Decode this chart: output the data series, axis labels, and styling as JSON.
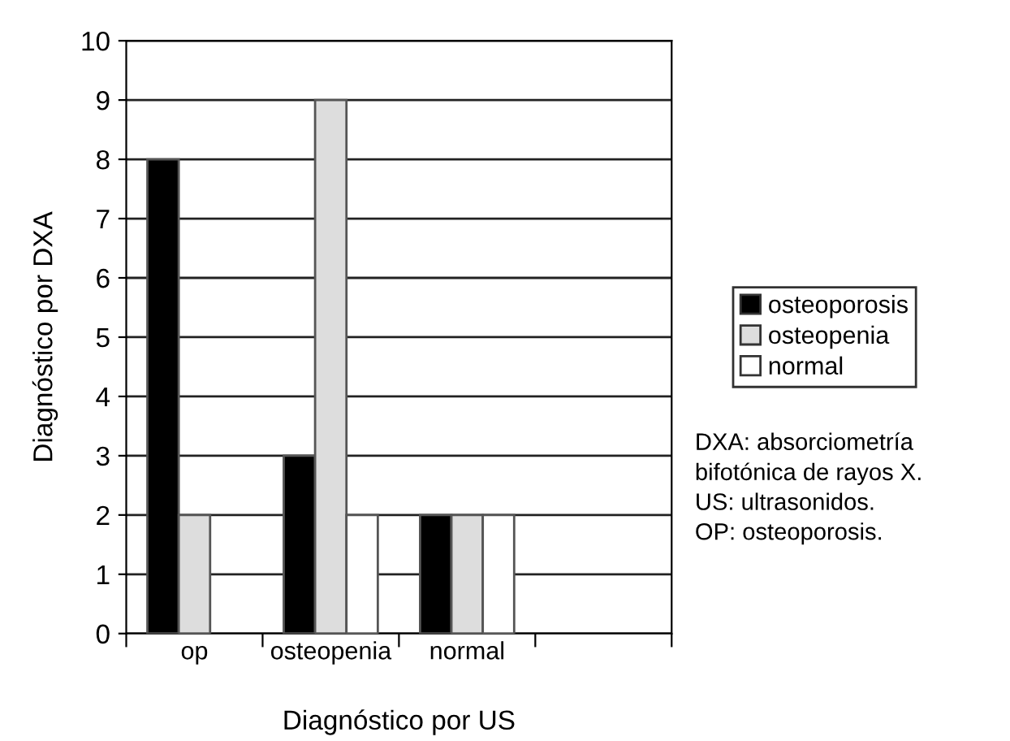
{
  "chart_data": {
    "type": "bar",
    "xlabel": "Diagnóstico por US",
    "ylabel": "Diagnóstico por DXA",
    "categories": [
      "op",
      "osteopenia",
      "normal",
      null
    ],
    "series": [
      {
        "name": "osteoporosis",
        "color": "#000000",
        "values": [
          8,
          3,
          2,
          null
        ]
      },
      {
        "name": "osteopenia",
        "color": "#dddddd",
        "values": [
          2,
          9,
          2,
          null
        ]
      },
      {
        "name": "normal",
        "color": "#ffffff",
        "values": [
          null,
          2,
          2,
          null
        ]
      }
    ],
    "ylim": [
      0,
      10
    ],
    "yticks": [
      0,
      1,
      2,
      3,
      4,
      5,
      6,
      7,
      8,
      9,
      10
    ],
    "grid": "y",
    "legend": "right",
    "annotations": [
      "DXA: absorciometría\nbifotónica de rayos X.\nUS: ultrasonidos.\nOP: osteoporosis."
    ]
  }
}
